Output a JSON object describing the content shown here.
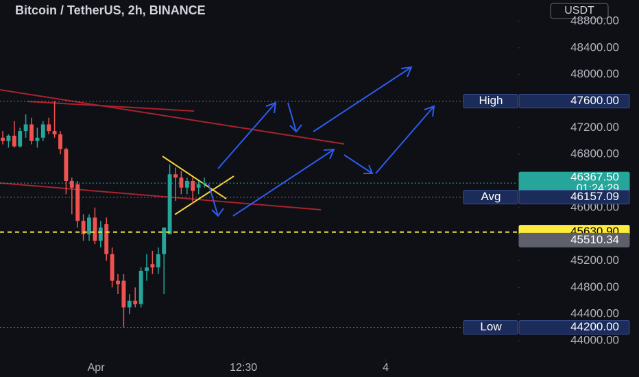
{
  "chart_data": {
    "type": "candlestick",
    "title": "Bitcoin / TetherUS, 2h, BINANCE",
    "currency": "USDT",
    "x": [
      0,
      1,
      2,
      3,
      4,
      5,
      6,
      7,
      8,
      9,
      10,
      11,
      12,
      13,
      14,
      15,
      16,
      17,
      18,
      19,
      20,
      21,
      22,
      23,
      24,
      25,
      26,
      27,
      28,
      29,
      30,
      31,
      32,
      33,
      34,
      35
    ],
    "open": [
      47050,
      47000,
      47080,
      46920,
      47150,
      47250,
      47000,
      47050,
      47250,
      47150,
      47100,
      46880,
      46400,
      46350,
      45800,
      45600,
      45850,
      45500,
      45750,
      45300,
      44900,
      44900,
      44500,
      44600,
      44550,
      45050,
      45150,
      45100,
      45300,
      45600,
      46500,
      46450,
      46300,
      46400,
      46300,
      46350
    ],
    "high": [
      47150,
      47100,
      47300,
      47200,
      47400,
      47350,
      47200,
      47300,
      47350,
      47600,
      47150,
      46900,
      46450,
      46400,
      45900,
      45900,
      46000,
      45800,
      45850,
      45400,
      45000,
      45000,
      44700,
      44800,
      45100,
      45300,
      45350,
      45400,
      45700,
      46650,
      46600,
      46550,
      46450,
      46450,
      46400,
      46450
    ],
    "low": [
      46950,
      46900,
      46900,
      46900,
      47050,
      46950,
      46900,
      47000,
      47100,
      47050,
      46800,
      46200,
      45900,
      45700,
      45500,
      45500,
      45450,
      45400,
      45200,
      44800,
      44700,
      44200,
      44400,
      44500,
      44500,
      44900,
      45000,
      45000,
      44700,
      45600,
      46100,
      46200,
      46200,
      46050,
      46200,
      46300
    ],
    "close": [
      47000,
      47080,
      46920,
      47150,
      47250,
      47000,
      47050,
      47250,
      47150,
      47100,
      46880,
      46400,
      46300,
      45800,
      45600,
      45850,
      45500,
      45700,
      45300,
      44900,
      44850,
      44500,
      44600,
      44550,
      45050,
      45100,
      45100,
      45300,
      45700,
      46500,
      46450,
      46300,
      46400,
      46250,
      46350,
      46367.5
    ],
    "up_color": "#26a69a",
    "down_color": "#ef5350",
    "xlim": [
      -0.476,
      89.4
    ],
    "xticks": [
      {
        "value": 16.2,
        "label": "Apr"
      },
      {
        "value": 41.8,
        "label": "12:30"
      },
      {
        "value": 66.5,
        "label": "4"
      }
    ],
    "ylim": [
      43454,
      49119
    ],
    "yticks": [
      {
        "value": 48800,
        "label": "48800.00"
      },
      {
        "value": 48400,
        "label": "48400.00"
      },
      {
        "value": 48000,
        "label": "48000.00"
      },
      {
        "value": 47200,
        "label": "47200.00"
      },
      {
        "value": 46800,
        "label": "46800.00"
      },
      {
        "value": 46000,
        "label": "46000.00"
      },
      {
        "value": 45200,
        "label": "45200.00"
      },
      {
        "value": 44800,
        "label": "44800.00"
      },
      {
        "value": 44400,
        "label": "44400.00"
      },
      {
        "value": 44000,
        "label": "44000.00"
      }
    ],
    "price_lines": [
      {
        "name": "High",
        "value": 47600,
        "label": "47600.00",
        "color": "#1c2c5a"
      },
      {
        "value": 46367.5,
        "label": "46367.50",
        "countdown": "01:24:29",
        "color": "#26a69a"
      },
      {
        "name": "Avg",
        "value": 46157.09,
        "label": "46157.09",
        "color": "#1c2c5a"
      },
      {
        "value": 45630.9,
        "label": "45630.90",
        "color": "#ffeb3b"
      },
      {
        "value": 45510.34,
        "label": "45510.34",
        "color": "#5d606b"
      },
      {
        "name": "Low",
        "value": 44200,
        "label": "44200.00",
        "color": "#1c2c5a"
      }
    ]
  }
}
